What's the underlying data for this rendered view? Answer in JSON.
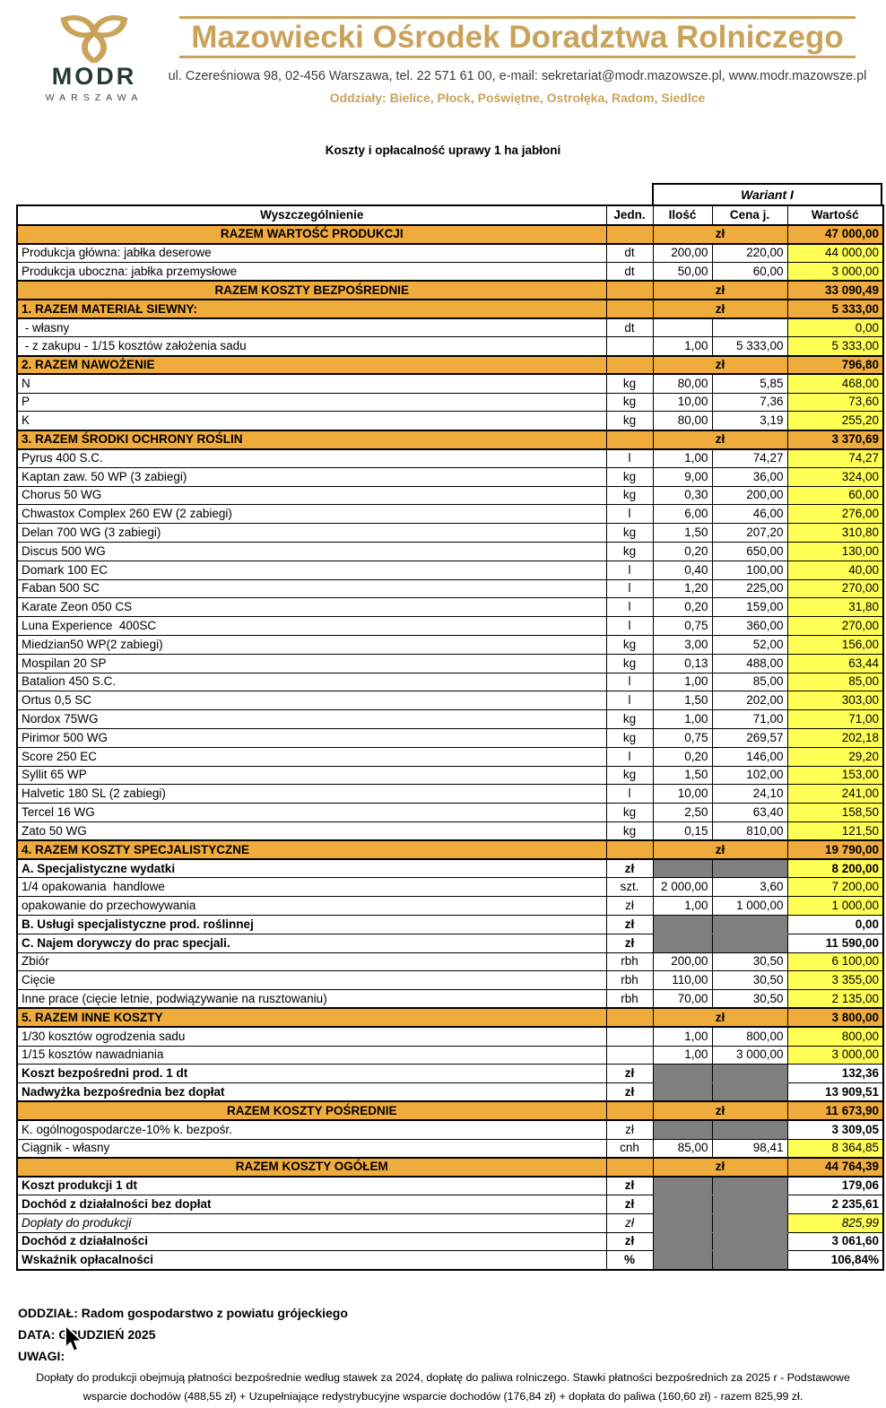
{
  "header": {
    "logo": {
      "text": "MODR",
      "subtext": "WARSZAWA"
    },
    "org_name": "Mazowiecki Ośrodek Doradztwa Rolniczego",
    "address": "ul. Czereśniowa 98, 02-456 Warszawa, tel. 22 571 61 00, e-mail: sekretariat@modr.mazowsze.pl, www.modr.mazowsze.pl",
    "branches": "Oddziały: Bielice, Płock, Poświętne, Ostrołęka, Radom, Siedlce"
  },
  "document_title": "Koszty i opłacalność uprawy 1 ha jabłoni",
  "table": {
    "variant_header": "Wariant I",
    "columns": [
      "Wyszczególnienie",
      "Jedn.",
      "Ilość",
      "Cena j.",
      "Wartość"
    ],
    "currency_label": "zł",
    "rows": [
      {
        "type": "section",
        "align": "center",
        "label": "RAZEM WARTOŚĆ PRODUKCJI",
        "value": "47 000,00"
      },
      {
        "label": "Produkcja główna: jabłka deserowe",
        "unit": "dt",
        "qty": "200,00",
        "price": "220,00",
        "value": "44 000,00"
      },
      {
        "label": "Produkcja uboczna: jabłka przemysłowe",
        "unit": "dt",
        "qty": "50,00",
        "price": "60,00",
        "value": "3 000,00"
      },
      {
        "type": "section",
        "align": "center",
        "label": "RAZEM KOSZTY BEZPOŚREDNIE",
        "value": "33 090,49"
      },
      {
        "type": "section",
        "align": "left",
        "label": "1. RAZEM MATERIAŁ SIEWNY:",
        "value": "5 333,00"
      },
      {
        "label": " - własny",
        "unit": "dt",
        "qty": "",
        "price": "",
        "value": "0,00"
      },
      {
        "label": " - z zakupu - 1/15 kosztów założenia sadu",
        "unit": "",
        "qty": "1,00",
        "price": "5 333,00",
        "value": "5 333,00"
      },
      {
        "type": "section",
        "align": "left",
        "label": "2. RAZEM NAWOŻENIE",
        "value": "796,80"
      },
      {
        "label": "N",
        "unit": "kg",
        "qty": "80,00",
        "price": "5,85",
        "value": "468,00"
      },
      {
        "label": "P",
        "unit": "kg",
        "qty": "10,00",
        "price": "7,36",
        "value": "73,60"
      },
      {
        "label": "K",
        "unit": "kg",
        "qty": "80,00",
        "price": "3,19",
        "value": "255,20"
      },
      {
        "type": "section",
        "align": "left",
        "label": "3. RAZEM ŚRODKI OCHRONY ROŚLIN",
        "value": "3 370,69"
      },
      {
        "label": "Pyrus 400 S.C.",
        "unit": "l",
        "qty": "1,00",
        "price": "74,27",
        "value": "74,27"
      },
      {
        "label": "Kaptan zaw. 50 WP (3 zabiegi)",
        "unit": "kg",
        "qty": "9,00",
        "price": "36,00",
        "value": "324,00"
      },
      {
        "label": "Chorus 50 WG",
        "unit": "kg",
        "qty": "0,30",
        "price": "200,00",
        "value": "60,00"
      },
      {
        "label": "Chwastox Complex 260 EW (2 zabiegi)",
        "unit": "l",
        "qty": "6,00",
        "price": "46,00",
        "value": "276,00"
      },
      {
        "label": "Delan 700 WG (3 zabiegi)",
        "unit": "kg",
        "qty": "1,50",
        "price": "207,20",
        "value": "310,80"
      },
      {
        "label": "Discus 500 WG",
        "unit": "kg",
        "qty": "0,20",
        "price": "650,00",
        "value": "130,00"
      },
      {
        "label": "Domark 100 EC",
        "unit": "l",
        "qty": "0,40",
        "price": "100,00",
        "value": "40,00"
      },
      {
        "label": "Faban 500 SC",
        "unit": "l",
        "qty": "1,20",
        "price": "225,00",
        "value": "270,00"
      },
      {
        "label": "Karate Zeon 050 CS",
        "unit": "l",
        "qty": "0,20",
        "price": "159,00",
        "value": "31,80"
      },
      {
        "label": "Luna Experience  400SC",
        "unit": "l",
        "qty": "0,75",
        "price": "360,00",
        "value": "270,00"
      },
      {
        "label": "Miedzian50 WP(2 zabiegi)",
        "unit": "kg",
        "qty": "3,00",
        "price": "52,00",
        "value": "156,00"
      },
      {
        "label": "Mospilan 20 SP",
        "unit": "kg",
        "qty": "0,13",
        "price": "488,00",
        "value": "63,44"
      },
      {
        "label": "Batalion 450 S.C.",
        "unit": "l",
        "qty": "1,00",
        "price": "85,00",
        "value": "85,00"
      },
      {
        "label": "Ortus 0,5 SC",
        "unit": "l",
        "qty": "1,50",
        "price": "202,00",
        "value": "303,00"
      },
      {
        "label": "Nordox 75WG",
        "unit": "kg",
        "qty": "1,00",
        "price": "71,00",
        "value": "71,00"
      },
      {
        "label": "Pirimor 500 WG",
        "unit": "kg",
        "qty": "0,75",
        "price": "269,57",
        "value": "202,18"
      },
      {
        "label": "Score 250 EC",
        "unit": "l",
        "qty": "0,20",
        "price": "146,00",
        "value": "29,20"
      },
      {
        "label": "Syllit 65 WP",
        "unit": "kg",
        "qty": "1,50",
        "price": "102,00",
        "value": "153,00"
      },
      {
        "label": "Halvetic 180 SL (2 zabiegi)",
        "unit": "l",
        "qty": "10,00",
        "price": "24,10",
        "value": "241,00"
      },
      {
        "label": "Tercel 16 WG",
        "unit": "kg",
        "qty": "2,50",
        "price": "63,40",
        "value": "158,50"
      },
      {
        "label": "Zato 50 WG",
        "unit": "kg",
        "qty": "0,15",
        "price": "810,00",
        "value": "121,50"
      },
      {
        "type": "section",
        "align": "left",
        "label": "4. RAZEM KOSZTY SPECJALISTYCZNE",
        "value": "19 790,00"
      },
      {
        "label": "A. Specjalistyczne wydatki",
        "unit": "zł",
        "gray": true,
        "bold": true,
        "value": "8 200,00"
      },
      {
        "label": "1/4 opakowania  handlowe",
        "unit": "szt.",
        "qty": "2 000,00",
        "price": "3,60",
        "value": "7 200,00"
      },
      {
        "label": "opakowanie do przechowywania",
        "unit": "zł",
        "qty": "1,00",
        "price": "1 000,00",
        "value": "1 000,00"
      },
      {
        "label": "B. Usługi specjalistyczne prod. roślinnej",
        "unit": "zł",
        "gray": true,
        "bold": true,
        "value": "0,00",
        "value_bg": "white"
      },
      {
        "label": "C. Najem dorywczy do prac specjali.",
        "unit": "zł",
        "gray": true,
        "bold": true,
        "value": "11 590,00",
        "value_bg": "white"
      },
      {
        "label": "Zbiór",
        "unit": "rbh",
        "qty": "200,00",
        "price": "30,50",
        "value": "6 100,00"
      },
      {
        "label": "Cięcie",
        "unit": "rbh",
        "qty": "110,00",
        "price": "30,50",
        "value": "3 355,00"
      },
      {
        "label": "Inne prace (cięcie letnie, podwiązywanie na rusztowaniu)",
        "unit": "rbh",
        "qty": "70,00",
        "price": "30,50",
        "value": "2 135,00"
      },
      {
        "type": "section",
        "align": "left",
        "label": "5. RAZEM INNE KOSZTY",
        "value": "3 800,00"
      },
      {
        "label": "1/30 kosztów ogrodzenia sadu",
        "unit": "",
        "qty": "1,00",
        "price": "800,00",
        "value": "800,00"
      },
      {
        "label": "1/15 kosztów nawadniania",
        "unit": "",
        "qty": "1,00",
        "price": "3 000,00",
        "value": "3 000,00"
      },
      {
        "label": "Koszt bezpośredni prod. 1 dt",
        "unit": "zł",
        "gray": true,
        "bold": true,
        "value": "132,36",
        "value_bg": "white"
      },
      {
        "label": "Nadwyżka bezpośrednia bez dopłat",
        "unit": "zł",
        "gray": true,
        "bold": true,
        "value": "13 909,51",
        "value_bg": "white"
      },
      {
        "type": "section",
        "align": "center",
        "label": "RAZEM KOSZTY POŚREDNIE",
        "value": "11 673,90"
      },
      {
        "label": "K. ogólnogospodarcze-10% k. bezpośr.",
        "unit": "zł",
        "gray": true,
        "value": "3 309,05",
        "value_bg": "white"
      },
      {
        "label": "Ciągnik - własny",
        "unit": "cnh",
        "qty": "85,00",
        "price": "98,41",
        "value": "8 364,85"
      },
      {
        "type": "section",
        "align": "center",
        "label": "RAZEM KOSZTY OGÓŁEM",
        "value": "44 764,39"
      },
      {
        "label": "Koszt produkcji 1 dt",
        "unit": "zł",
        "gray": true,
        "bold": true,
        "value": "179,06",
        "value_bg": "white"
      },
      {
        "label": "Dochód z działalności bez dopłat",
        "unit": "zł",
        "gray": true,
        "bold": true,
        "value": "2 235,61",
        "value_bg": "white"
      },
      {
        "label": "Dopłaty do produkcji",
        "unit": "zł",
        "gray": true,
        "italic": true,
        "value": "825,99"
      },
      {
        "label": "Dochód z działalności",
        "unit": "zł",
        "gray": true,
        "bold": true,
        "value": "3 061,60",
        "value_bg": "white"
      },
      {
        "label": "Wskaźnik opłacalności",
        "unit": "%",
        "gray": true,
        "bold": true,
        "value": "106,84%",
        "value_bg": "white"
      }
    ]
  },
  "footer": {
    "oddzial": "ODDZIAŁ: Radom gospodarstwo z powiatu grójeckiego",
    "data": "DATA: GRUDZIEŃ 2025",
    "uwagi": "UWAGI:",
    "note": "Dopłaty do produkcji obejmują płatności bezpośrednie według stawek za 2024, dopłatę do paliwa rolniczego. Stawki płatności bezpośrednich za 2025 r - Podstawowe wsparcie dochodów (488,55 zł) + Uzupełniające redystrybucyjne wsparcie dochodów  (176,84 zł) + dopłata do paliwa (160,60 zł) - razem 825,99 zł."
  },
  "colors": {
    "gold": "#C9A35C",
    "dark_green": "#253B2F",
    "orange": "#F0AB3D",
    "yellow": "#FFFF55",
    "gray": "#7F7F7F"
  }
}
